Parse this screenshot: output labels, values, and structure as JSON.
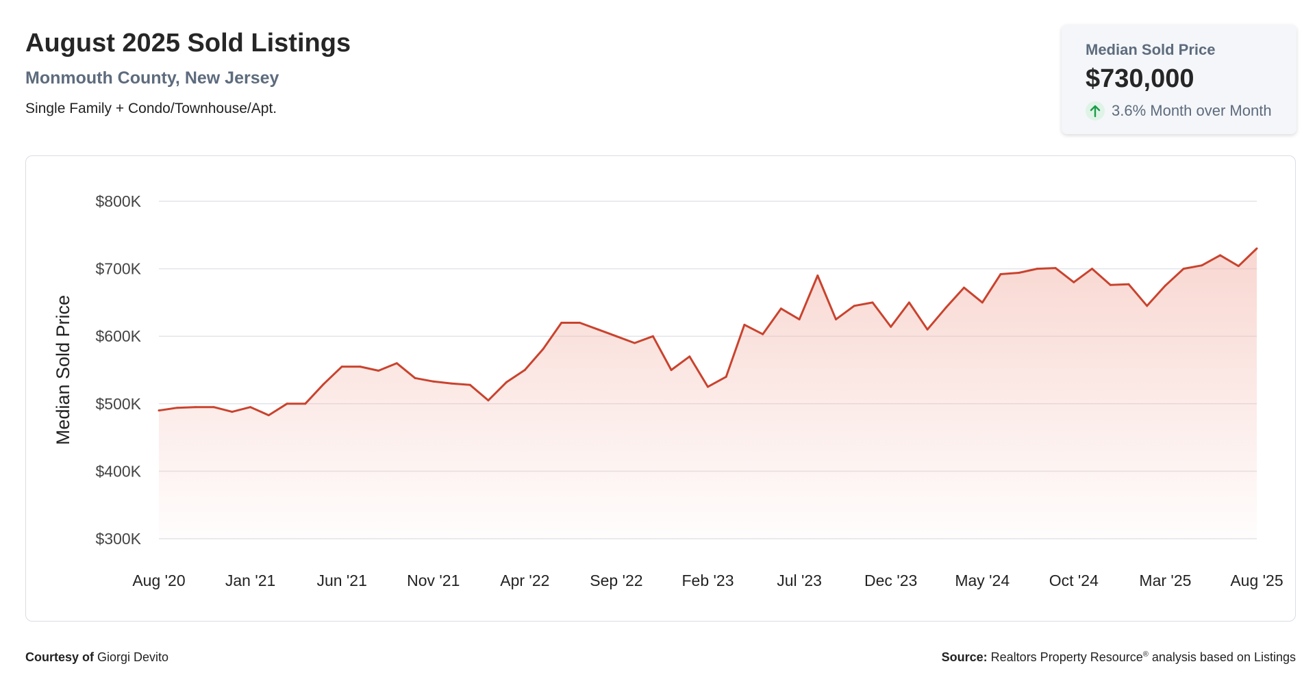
{
  "header": {
    "title": "August 2025 Sold Listings",
    "subtitle": "Monmouth County, New Jersey",
    "description": "Single Family + Condo/Townhouse/Apt."
  },
  "summary_card": {
    "label": "Median Sold Price",
    "value": "$730,000",
    "change_text": "3.6% Month over Month",
    "trend_icon": "arrow-up-icon",
    "trend_color": "#1a9c4a"
  },
  "footer": {
    "courtesy_label": "Courtesy of",
    "courtesy_name": "Giorgi Devito",
    "source_label": "Source:",
    "source_text_a": "Realtors Property Resource",
    "source_reg": "®",
    "source_text_b": " analysis based on Listings"
  },
  "chart_data": {
    "type": "area",
    "title": "",
    "xlabel": "",
    "ylabel": "Median Sold Price",
    "ylim": [
      300000,
      800000
    ],
    "yticks": [
      300000,
      400000,
      500000,
      600000,
      700000,
      800000
    ],
    "ytick_labels": [
      "$300K",
      "$400K",
      "$500K",
      "$600K",
      "$700K",
      "$800K"
    ],
    "xtick_labels": [
      "Aug '20",
      "Jan '21",
      "Jun '21",
      "Nov '21",
      "Apr '22",
      "Sep '22",
      "Feb '23",
      "Jul '23",
      "Dec '23",
      "May '24",
      "Oct '24",
      "Mar '25",
      "Aug '25"
    ],
    "grid": true,
    "line_color": "#c9432e",
    "fill_color": "#f3b6ab",
    "series": [
      {
        "x": [
          "2020-08",
          "2020-09",
          "2020-10",
          "2020-11",
          "2020-12",
          "2021-01",
          "2021-02",
          "2021-03",
          "2021-04",
          "2021-05",
          "2021-06",
          "2021-07",
          "2021-08",
          "2021-09",
          "2021-10",
          "2021-11",
          "2021-12",
          "2022-01",
          "2022-02",
          "2022-03",
          "2022-04",
          "2022-05",
          "2022-06",
          "2022-07",
          "2022-08",
          "2022-09",
          "2022-10",
          "2022-11",
          "2022-12",
          "2023-01",
          "2023-02",
          "2023-03",
          "2023-04",
          "2023-05",
          "2023-06",
          "2023-07",
          "2023-08",
          "2023-09",
          "2023-10",
          "2023-11",
          "2023-12",
          "2024-01",
          "2024-02",
          "2024-03",
          "2024-04",
          "2024-05",
          "2024-06",
          "2024-07",
          "2024-08",
          "2024-09",
          "2024-10",
          "2024-11",
          "2024-12",
          "2025-01",
          "2025-02",
          "2025-03",
          "2025-04",
          "2025-05",
          "2025-06",
          "2025-07",
          "2025-08"
        ],
        "values": [
          490000,
          494000,
          495000,
          495000,
          488000,
          495000,
          483000,
          500000,
          500000,
          529000,
          555000,
          555000,
          549000,
          560000,
          538000,
          533000,
          530000,
          528000,
          505000,
          532000,
          550000,
          581000,
          620000,
          620000,
          610000,
          600000,
          590000,
          600000,
          550000,
          570000,
          525000,
          540000,
          617000,
          603000,
          641000,
          625000,
          690000,
          625000,
          645000,
          650000,
          614000,
          650000,
          610000,
          642000,
          672000,
          650000,
          692000,
          694000,
          700000,
          701000,
          680000,
          700000,
          676000,
          677000,
          645000,
          675000,
          700000,
          705000,
          720000,
          704000,
          730000
        ]
      }
    ]
  }
}
